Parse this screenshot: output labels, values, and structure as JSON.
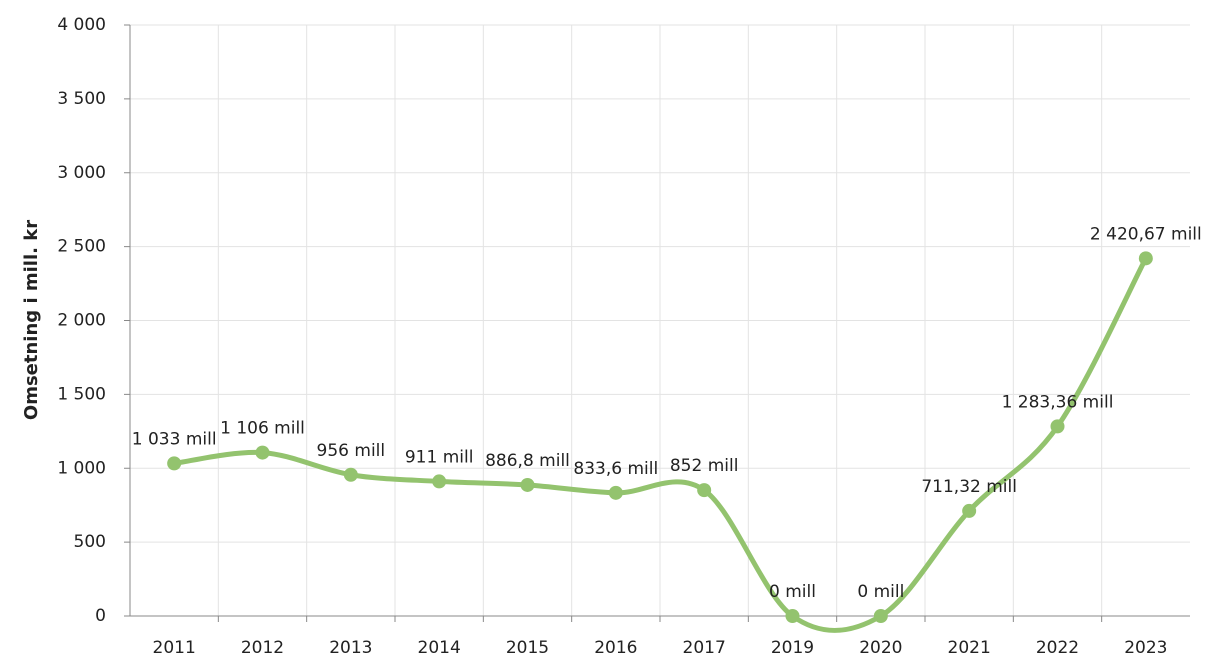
{
  "chart_data": {
    "type": "line",
    "y_label": "Omsetning i mill. kr",
    "categories": [
      "2011",
      "2012",
      "2013",
      "2014",
      "2015",
      "2016",
      "2017",
      "2019",
      "2020",
      "2021",
      "2022",
      "2023"
    ],
    "series": [
      {
        "name": "Omsetning",
        "color": "#93c36e",
        "values": [
          1033,
          1106,
          956,
          911,
          886.8,
          833.6,
          852,
          0,
          0,
          711.32,
          1283.36,
          2420.67
        ],
        "value_labels": [
          "1 033 mill",
          "1 106 mill",
          "956 mill",
          "911 mill",
          "886,8 mill",
          "833,6 mill",
          "852 mill",
          "0 mill",
          "0 mill",
          "711,32 mill",
          "1 283,36 mill",
          "2 420,67 mill"
        ]
      }
    ],
    "ylim": [
      0,
      4000
    ],
    "yticks": [
      0,
      500,
      {
        "value": 1000,
        "label": "1 000"
      },
      {
        "value": 1500,
        "label": "1 500"
      },
      {
        "value": 2000,
        "label": "2 000"
      },
      {
        "value": 2500,
        "label": "2 500"
      },
      {
        "value": 3000,
        "label": "3 000"
      },
      {
        "value": 3500,
        "label": "3 500"
      },
      {
        "value": 4000,
        "label": "4 000"
      }
    ],
    "grid": true
  }
}
